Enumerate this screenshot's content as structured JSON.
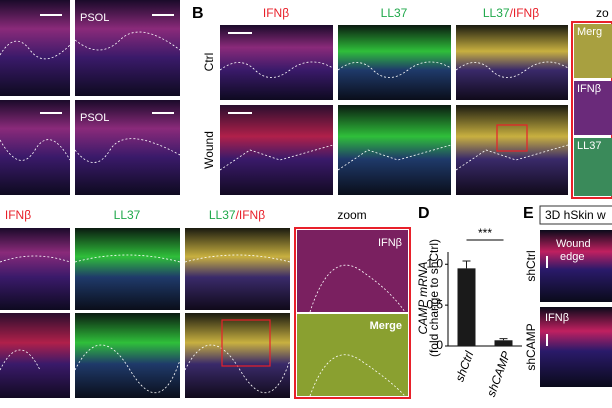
{
  "panel_a": {
    "labels": [
      "PSOL",
      "PSOL"
    ]
  },
  "panel_b": {
    "letter": "B",
    "columns": [
      "IFNβ",
      "LL37",
      [
        "LL37",
        "/IFNβ"
      ],
      "zo"
    ],
    "rows": [
      "Ctrl",
      "Wound"
    ],
    "zoom_labels": [
      "Merg",
      "IFNβ",
      "LL37"
    ]
  },
  "panel_c": {
    "columns": [
      "IFNβ",
      "LL37",
      [
        "LL37",
        "/IFNβ"
      ],
      "zoom"
    ],
    "zoom_labels": [
      "IFNβ",
      "Merge"
    ]
  },
  "panel_d": {
    "letter": "D",
    "chart_data": {
      "type": "bar",
      "y_label": [
        "CAMP mRNA",
        "(fold change to shCtrl)"
      ],
      "categories": [
        "shCtrl",
        "shCAMP"
      ],
      "values": [
        0.95,
        0.07
      ],
      "errors": [
        0.09,
        0.02
      ],
      "color": "#1a1a1a",
      "ylim": [
        0,
        1.15
      ],
      "yticks": [
        0,
        0.5,
        {
          "value": 1,
          "label": "1.0"
        }
      ],
      "significance": "***"
    }
  },
  "panel_e": {
    "letter": "E",
    "title": "3D hSkin w",
    "annotation": [
      "Wound",
      "edge"
    ],
    "rows": [
      "shCtrl",
      "shCAMP"
    ],
    "stain": "IFNβ"
  }
}
